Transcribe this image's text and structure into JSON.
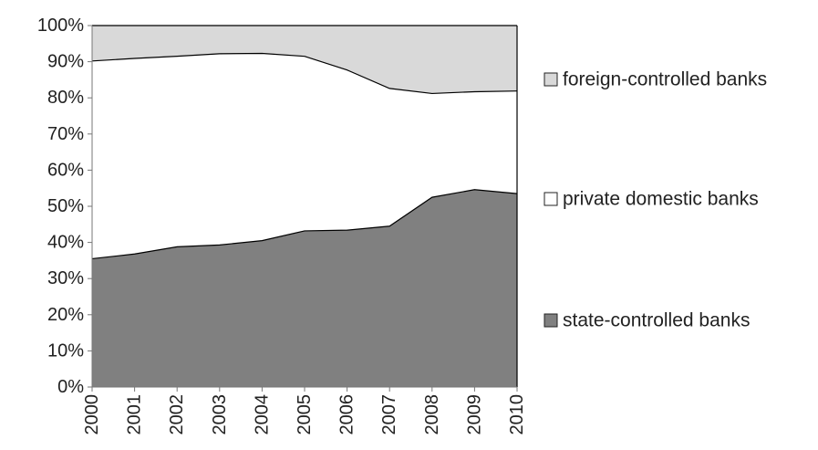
{
  "chart_data": {
    "type": "area",
    "stacked": true,
    "normalized": true,
    "x": [
      "2000",
      "2001",
      "2002",
      "2003",
      "2004",
      "2005",
      "2006",
      "2007",
      "2008",
      "2009",
      "2010"
    ],
    "series": [
      {
        "name": "state-controlled banks",
        "color": "#808080",
        "values": [
          35.5,
          36.8,
          38.8,
          39.3,
          40.5,
          43.2,
          43.4,
          44.5,
          52.5,
          54.6,
          53.5
        ]
      },
      {
        "name": "private domestic banks",
        "color": "#ffffff",
        "values": [
          54.7,
          54.1,
          52.7,
          52.9,
          51.8,
          48.3,
          44.3,
          38.1,
          28.7,
          27.1,
          28.4
        ]
      },
      {
        "name": "foreign-controlled banks",
        "color": "#d9d9d9",
        "values": [
          9.8,
          9.1,
          8.5,
          7.8,
          7.7,
          8.5,
          12.3,
          17.4,
          18.8,
          18.3,
          18.1
        ]
      }
    ],
    "y_ticks": [
      "0%",
      "10%",
      "20%",
      "30%",
      "40%",
      "50%",
      "60%",
      "70%",
      "80%",
      "90%",
      "100%"
    ],
    "ylim": [
      0,
      100
    ],
    "legend_position": "right",
    "legend_order": [
      "foreign-controlled banks",
      "private domestic banks",
      "state-controlled banks"
    ],
    "grid": false
  }
}
